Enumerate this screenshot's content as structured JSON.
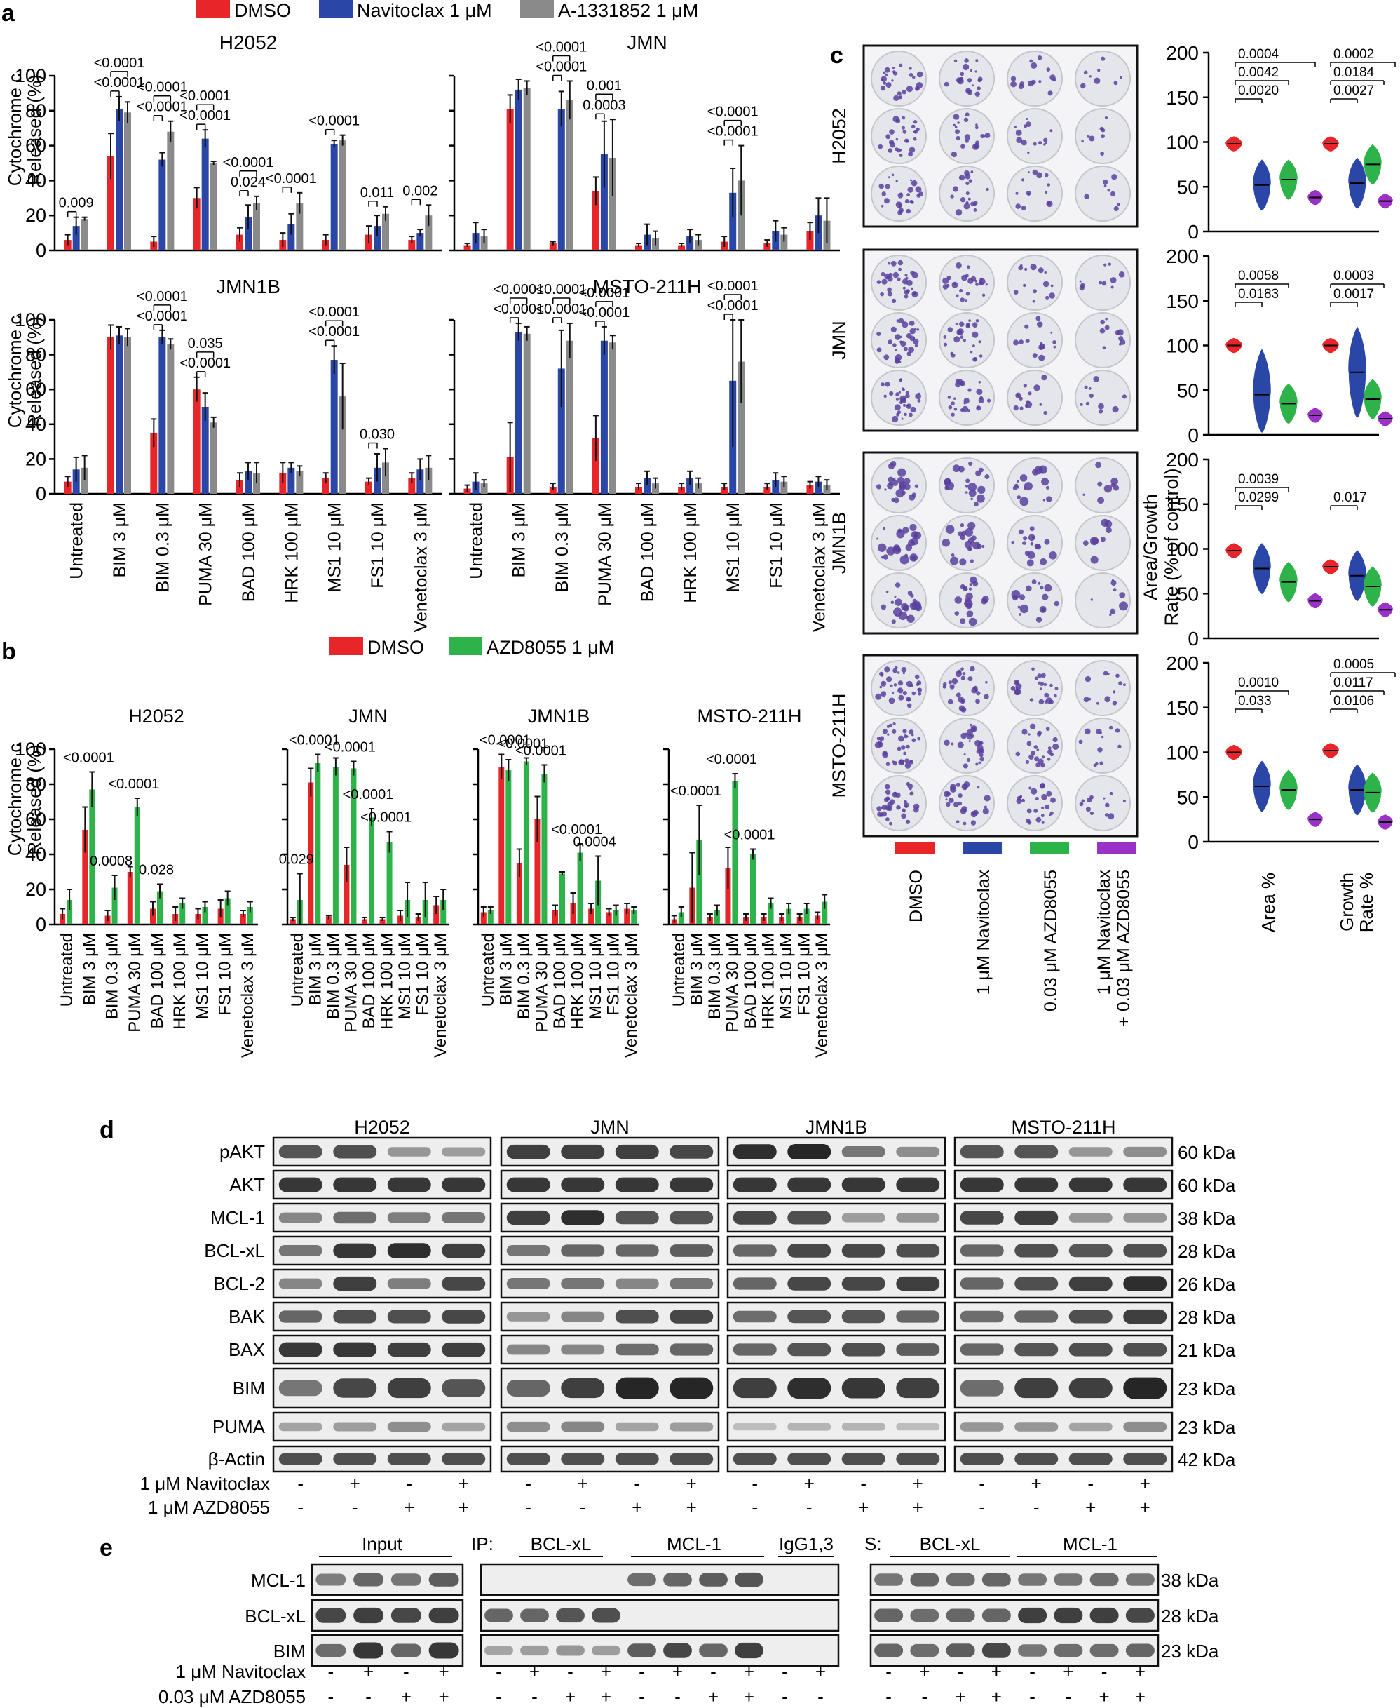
{
  "panel_labels": {
    "a": "a",
    "b": "b",
    "c": "c",
    "d": "d",
    "e": "e"
  },
  "colors": {
    "dmso": "#e8262a",
    "navitoclax": "#2a46a6",
    "a1331852": "#8a8a8a",
    "azd8055": "#2db34a",
    "combo": "#9a32c8",
    "plate_bg": "#e4e6ec",
    "colony": "#5b3f9e",
    "band": "#222222"
  },
  "panel_a": {
    "legend": [
      "DMSO",
      "Navitoclax 1 μM",
      "A-1331852 1 μM"
    ],
    "ylabel": [
      "Cytochrome c",
      "Released (%)"
    ],
    "categories": [
      "Untreated",
      "BIM 3 μM",
      "BIM 0.3 μM",
      "PUMA 30 μM",
      "BAD 100 μM",
      "HRK 100 μM",
      "MS1 10 μM",
      "FS1 10 μM",
      "Venetoclax 3 μM"
    ],
    "yticks": [
      "0",
      "20",
      "40",
      "60",
      "80",
      "100"
    ]
  },
  "panel_b": {
    "legend": [
      "DMSO",
      "AZD8055 1 μM"
    ],
    "ylabel": [
      "Cytochrome c",
      "Released (%)"
    ],
    "categories": [
      "Untreated",
      "BIM 3 μM",
      "BIM 0.3 μM",
      "PUMA 30 μM",
      "BAD 100 μM",
      "HRK 100 μM",
      "MS1 10 μM",
      "FS1 10 μM",
      "Venetoclax 3 μM"
    ],
    "yticks": [
      "0",
      "20",
      "40",
      "60",
      "80",
      "100"
    ]
  },
  "panel_c": {
    "cell_lines": [
      "H2052",
      "JMN",
      "JMN1B",
      "MSTO-211H"
    ],
    "treatments": [
      "DMSO",
      "1 μM Navitoclax",
      "0.03 μM AZD8055",
      "1 μM Navitoclax",
      "+ 0.03 μM AZD8055"
    ],
    "ylabel": "Area/Growth Rate (% of control)",
    "ylabel_parts": [
      "Area/Growth",
      "Rate (% of control)"
    ],
    "xgroups": [
      "Area %",
      "Growth",
      "Rate %"
    ],
    "yticks": [
      "0",
      "50",
      "100",
      "150",
      "200"
    ]
  },
  "panel_d": {
    "cell_lines": [
      "H2052",
      "JMN",
      "JMN1B",
      "MSTO-211H"
    ],
    "rows": [
      {
        "label": "pAKT",
        "kda": "60 kDa"
      },
      {
        "label": "AKT",
        "kda": "60 kDa"
      },
      {
        "label": "MCL-1",
        "kda": "38 kDa"
      },
      {
        "label": "BCL-xL",
        "kda": "28 kDa"
      },
      {
        "label": "BCL-2",
        "kda": "26 kDa"
      },
      {
        "label": "BAK",
        "kda": "28 kDa"
      },
      {
        "label": "BAX",
        "kda": "21 kDa"
      },
      {
        "label": "BIM",
        "kda": "23 kDa"
      },
      {
        "label": "PUMA",
        "kda": "23 kDa"
      },
      {
        "label": "β-Actin",
        "kda": "42 kDa"
      }
    ],
    "treat_labels": [
      "1 μM Navitoclax",
      "1 μM AZD8055"
    ],
    "navitoclax_signs": [
      "-",
      "+",
      "-",
      "+"
    ],
    "azd_signs": [
      "-",
      "-",
      "+",
      "+"
    ]
  },
  "panel_e": {
    "headers": {
      "input": "Input",
      "ip": "IP:",
      "ip_bclxl": "BCL-xL",
      "ip_mcl1": "MCL-1",
      "igg": "IgG1,3",
      "s": "S:",
      "s_bclxl": "BCL-xL",
      "s_mcl1": "MCL-1"
    },
    "rows": [
      {
        "label": "MCL-1",
        "kda": "38 kDa"
      },
      {
        "label": "BCL-xL",
        "kda": "28 kDa"
      },
      {
        "label": "BIM",
        "kda": "23 kDa"
      }
    ],
    "treat_labels": [
      "1 μM Navitoclax",
      "0.03 μM AZD8055"
    ],
    "navitoclax_signs": [
      "-",
      "+",
      "-",
      "+"
    ],
    "azd_signs": [
      "-",
      "-",
      "+",
      "+"
    ]
  },
  "chart_data": [
    {
      "id": "a-H2052",
      "type": "bar",
      "title": "H2052",
      "categories": [
        "Untreated",
        "BIM 3 μM",
        "BIM 0.3 μM",
        "PUMA 30 μM",
        "BAD 100 μM",
        "HRK 100 μM",
        "MS1 10 μM",
        "FS1 10 μM",
        "Venetoclax 3 μM"
      ],
      "series": [
        {
          "name": "DMSO",
          "color": "#e8262a",
          "values": [
            6,
            54,
            5,
            30,
            9,
            6,
            6,
            9,
            6
          ],
          "err": [
            3,
            13,
            3,
            6,
            4,
            4,
            3,
            5,
            2
          ]
        },
        {
          "name": "Navitoclax 1 μM",
          "color": "#2a46a6",
          "values": [
            14,
            81,
            52,
            64,
            19,
            15,
            61,
            14,
            10
          ],
          "err": [
            5,
            7,
            4,
            5,
            7,
            6,
            2,
            6,
            2
          ]
        },
        {
          "name": "A-1331852 1 μM",
          "color": "#8a8a8a",
          "values": [
            18,
            79,
            68,
            50,
            27,
            27,
            63,
            21,
            20
          ],
          "err": [
            1,
            6,
            6,
            1,
            4,
            6,
            3,
            4,
            6
          ]
        }
      ],
      "ylim": [
        0,
        100
      ],
      "annotations": [
        "0.009",
        "<0.0001",
        "<0.0001",
        "<0.0001",
        "<0.0001",
        "<0.0001",
        "<0.0001",
        "0.024",
        "<0.0001",
        "<0.0001",
        "<0.0001",
        "0.011",
        "0.002"
      ]
    },
    {
      "id": "a-JMN",
      "type": "bar",
      "title": "JMN",
      "categories": [
        "Untreated",
        "BIM 3 μM",
        "BIM 0.3 μM",
        "PUMA 30 μM",
        "BAD 100 μM",
        "HRK 100 μM",
        "MS1 10 μM",
        "FS1 10 μM",
        "Venetoclax 3 μM"
      ],
      "series": [
        {
          "name": "DMSO",
          "color": "#e8262a",
          "values": [
            3,
            81,
            4,
            34,
            3,
            3,
            5,
            4,
            11
          ],
          "err": [
            1,
            8,
            1,
            8,
            1,
            1,
            3,
            2,
            5
          ]
        },
        {
          "name": "Navitoclax 1 μM",
          "color": "#2a46a6",
          "values": [
            10,
            92,
            81,
            55,
            9,
            8,
            33,
            11,
            20
          ],
          "err": [
            6,
            6,
            10,
            19,
            6,
            4,
            14,
            6,
            10
          ]
        },
        {
          "name": "A-1331852 1 μM",
          "color": "#8a8a8a",
          "values": [
            8,
            93,
            86,
            53,
            7,
            6,
            40,
            9,
            17
          ],
          "err": [
            4,
            4,
            11,
            22,
            4,
            3,
            20,
            4,
            13
          ]
        }
      ],
      "ylim": [
        0,
        100
      ],
      "annotations": [
        "<0.0001",
        "<0.0001",
        "0.0003",
        "0.001",
        "<0.0001",
        "<0.0001"
      ]
    },
    {
      "id": "a-JMN1B",
      "type": "bar",
      "title": "JMN1B",
      "categories": [
        "Untreated",
        "BIM 3 μM",
        "BIM 0.3 μM",
        "PUMA 30 μM",
        "BAD 100 μM",
        "HRK 100 μM",
        "MS1 10 μM",
        "FS1 10 μM",
        "Venetoclax 3 μM"
      ],
      "series": [
        {
          "name": "DMSO",
          "color": "#e8262a",
          "values": [
            7,
            90,
            35,
            60,
            8,
            12,
            9,
            7,
            9
          ],
          "err": [
            3,
            7,
            8,
            7,
            4,
            6,
            3,
            2,
            3
          ]
        },
        {
          "name": "Navitoclax 1 μM",
          "color": "#2a46a6",
          "values": [
            14,
            91,
            90,
            50,
            13,
            15,
            77,
            15,
            14
          ],
          "err": [
            7,
            5,
            4,
            8,
            5,
            3,
            8,
            8,
            6
          ]
        },
        {
          "name": "A-1331852 1 μM",
          "color": "#8a8a8a",
          "values": [
            15,
            90,
            86,
            41,
            12,
            13,
            56,
            18,
            15
          ],
          "err": [
            7,
            5,
            3,
            3,
            6,
            3,
            19,
            8,
            7
          ]
        }
      ],
      "ylim": [
        0,
        100
      ],
      "annotations": [
        "<0.0001",
        "<0.0001",
        "<0.0001",
        "0.035",
        "<0.0001",
        "<0.0001",
        "0.030"
      ]
    },
    {
      "id": "a-MSTO-211H",
      "type": "bar",
      "title": "MSTO-211H",
      "categories": [
        "Untreated",
        "BIM 3 μM",
        "BIM 0.3 μM",
        "PUMA 30 μM",
        "BAD 100 μM",
        "HRK 100 μM",
        "MS1 10 μM",
        "FS1 10 μM",
        "Venetoclax 3 μM"
      ],
      "series": [
        {
          "name": "DMSO",
          "color": "#e8262a",
          "values": [
            3,
            21,
            4,
            32,
            4,
            4,
            4,
            4,
            5
          ],
          "err": [
            2,
            20,
            2,
            13,
            2,
            2,
            2,
            2,
            2
          ]
        },
        {
          "name": "Navitoclax 1 μM",
          "color": "#2a46a6",
          "values": [
            7,
            93,
            72,
            88,
            9,
            9,
            65,
            8,
            7
          ],
          "err": [
            5,
            5,
            22,
            8,
            4,
            4,
            38,
            4,
            3
          ]
        },
        {
          "name": "A-1331852 1 μM",
          "color": "#8a8a8a",
          "values": [
            6,
            92,
            88,
            87,
            6,
            6,
            76,
            7,
            5
          ],
          "err": [
            2,
            4,
            10,
            4,
            3,
            3,
            24,
            3,
            3
          ]
        }
      ],
      "ylim": [
        0,
        100
      ],
      "annotations": [
        "<0.0001",
        "<0.0001",
        "<0.0001",
        "<0.0001",
        "<0.0001",
        "<0.0001",
        "<0.0001",
        "<0.0001"
      ]
    },
    {
      "id": "b-H2052",
      "type": "bar",
      "title": "H2052",
      "categories": [
        "Untreated",
        "BIM 3 μM",
        "BIM 0.3 μM",
        "PUMA 30 μM",
        "BAD 100 μM",
        "HRK 100 μM",
        "MS1 10 μM",
        "FS1 10 μM",
        "Venetoclax 3 μM"
      ],
      "series": [
        {
          "name": "DMSO",
          "color": "#e8262a",
          "values": [
            6,
            54,
            5,
            30,
            9,
            6,
            6,
            9,
            6
          ],
          "err": [
            3,
            13,
            3,
            3,
            4,
            4,
            3,
            5,
            2
          ]
        },
        {
          "name": "AZD8055 1 μM",
          "color": "#2db34a",
          "values": [
            14,
            77,
            21,
            67,
            19,
            12,
            10,
            15,
            10
          ],
          "err": [
            6,
            10,
            7,
            5,
            4,
            3,
            3,
            4,
            3
          ]
        }
      ],
      "ylim": [
        0,
        100
      ],
      "annotations": [
        "<0.0001",
        "0.0008",
        "<0.0001",
        "0.028"
      ]
    },
    {
      "id": "b-JMN",
      "type": "bar",
      "title": "JMN",
      "categories": [
        "Untreated",
        "BIM 3 μM",
        "BIM 0.3 μM",
        "PUMA 30 μM",
        "BAD 100 μM",
        "HRK 100 μM",
        "MS1 10 μM",
        "FS1 10 μM",
        "Venetoclax 3 μM"
      ],
      "series": [
        {
          "name": "DMSO",
          "color": "#e8262a",
          "values": [
            3,
            81,
            4,
            34,
            3,
            3,
            5,
            4,
            11
          ],
          "err": [
            1,
            8,
            1,
            10,
            1,
            1,
            3,
            2,
            5
          ]
        },
        {
          "name": "AZD8055 1 μM",
          "color": "#2db34a",
          "values": [
            14,
            92,
            90,
            89,
            61,
            47,
            14,
            14,
            14
          ],
          "err": [
            15,
            5,
            5,
            4,
            5,
            6,
            10,
            10,
            6
          ]
        }
      ],
      "ylim": [
        0,
        100
      ],
      "annotations": [
        "0.029",
        "<0.0001",
        "<0.0001",
        "<0.0001",
        "<0.0001"
      ]
    },
    {
      "id": "b-JMN1B",
      "type": "bar",
      "title": "JMN1B",
      "categories": [
        "Untreated",
        "BIM 3 μM",
        "BIM 0.3 μM",
        "PUMA 30 μM",
        "BAD 100 μM",
        "HRK 100 μM",
        "MS1 10 μM",
        "FS1 10 μM",
        "Venetoclax 3 μM"
      ],
      "series": [
        {
          "name": "DMSO",
          "color": "#e8262a",
          "values": [
            7,
            90,
            35,
            60,
            8,
            12,
            9,
            7,
            9
          ],
          "err": [
            3,
            7,
            8,
            13,
            3,
            6,
            3,
            2,
            3
          ]
        },
        {
          "name": "AZD8055 1 μM",
          "color": "#2db34a",
          "values": [
            8,
            88,
            93,
            86,
            29,
            41,
            25,
            8,
            8
          ],
          "err": [
            2,
            6,
            2,
            5,
            1,
            5,
            14,
            3,
            2
          ]
        }
      ],
      "ylim": [
        0,
        100
      ],
      "annotations": [
        "<0.0001",
        "<0.0001",
        "<0.0001",
        "<0.0001",
        "0.0004"
      ]
    },
    {
      "id": "b-MSTO-211H",
      "type": "bar",
      "title": "MSTO-211H",
      "categories": [
        "Untreated",
        "BIM 3 μM",
        "BIM 0.3 μM",
        "PUMA 30 μM",
        "BAD 100 μM",
        "HRK 100 μM",
        "MS1 10 μM",
        "FS1 10 μM",
        "Venetoclax 3 μM"
      ],
      "series": [
        {
          "name": "DMSO",
          "color": "#e8262a",
          "values": [
            3,
            21,
            4,
            32,
            4,
            4,
            4,
            4,
            5
          ],
          "err": [
            2,
            20,
            2,
            12,
            2,
            2,
            2,
            2,
            2
          ]
        },
        {
          "name": "AZD8055 1 μM",
          "color": "#2db34a",
          "values": [
            7,
            48,
            8,
            82,
            40,
            12,
            9,
            9,
            13
          ],
          "err": [
            3,
            20,
            3,
            4,
            3,
            3,
            3,
            3,
            4
          ]
        }
      ],
      "ylim": [
        0,
        100
      ],
      "annotations": [
        "<0.0001",
        "<0.0001",
        "<0.0001"
      ]
    },
    {
      "id": "c-violin",
      "type": "violin",
      "groups": [
        "Area %",
        "Growth Rate %"
      ],
      "treatments": [
        "DMSO",
        "1 μM Navitoclax",
        "0.03 μM AZD8055",
        "1 μM Navitoclax + 0.03 μM AZD8055"
      ],
      "ylim": [
        0,
        200
      ],
      "plots": [
        {
          "cell_line": "H2052",
          "medians": [
            [
              98,
              52,
              58,
              38
            ],
            [
              98,
              54,
              75,
              34
            ]
          ],
          "annotations": [
            "0.0020",
            "0.0042",
            "0.0004",
            "0.0027",
            "0.0184",
            "0.0002"
          ]
        },
        {
          "cell_line": "JMN",
          "medians": [
            [
              100,
              45,
              35,
              22
            ],
            [
              100,
              70,
              40,
              18
            ]
          ],
          "annotations": [
            "0.0183",
            "0.0058",
            "0.0017",
            "0.0003"
          ]
        },
        {
          "cell_line": "JMN1B",
          "medians": [
            [
              98,
              78,
              63,
              42
            ],
            [
              80,
              70,
              58,
              32
            ]
          ],
          "annotations": [
            "0.0299",
            "0.0039",
            "0.017"
          ]
        },
        {
          "cell_line": "MSTO-211H",
          "medians": [
            [
              100,
              62,
              58,
              25
            ],
            [
              102,
              58,
              55,
              22
            ]
          ],
          "annotations": [
            "0.033",
            "0.0010",
            "0.0106",
            "0.0117",
            "0.0005"
          ]
        }
      ]
    }
  ]
}
